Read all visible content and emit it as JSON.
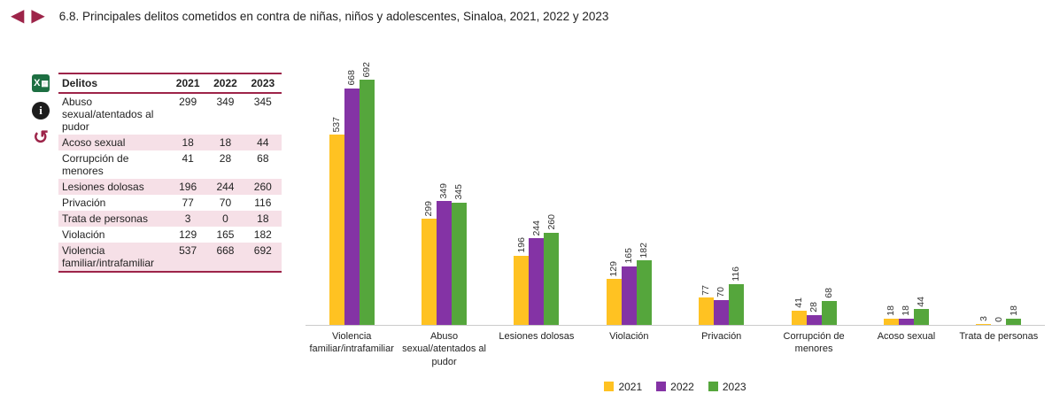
{
  "header": {
    "title": "6.8. Principales delitos cometidos en contra de niñas, niños y adolescentes, Sinaloa, 2021, 2022 y 2023",
    "prev_arrow": "◀",
    "next_arrow": "▶"
  },
  "toolbar": {
    "excel_icon": "excel-export-icon",
    "excel_glyph": "X",
    "excel_grid_glyph": "▦",
    "info_icon": "info-icon",
    "info_glyph": "i",
    "refresh_icon": "refresh-icon",
    "refresh_glyph": "↺"
  },
  "table": {
    "headers": [
      "Delitos",
      "2021",
      "2022",
      "2023"
    ],
    "rows": [
      {
        "label": "Abuso sexual/atentados al pudor",
        "values": [
          "299",
          "349",
          "345"
        ]
      },
      {
        "label": "Acoso sexual",
        "values": [
          "18",
          "18",
          "44"
        ]
      },
      {
        "label": "Corrupción de menores",
        "values": [
          "41",
          "28",
          "68"
        ]
      },
      {
        "label": "Lesiones dolosas",
        "values": [
          "196",
          "244",
          "260"
        ]
      },
      {
        "label": "Privación",
        "values": [
          "77",
          "70",
          "116"
        ]
      },
      {
        "label": "Trata de personas",
        "values": [
          "3",
          "0",
          "18"
        ]
      },
      {
        "label": "Violación",
        "values": [
          "129",
          "165",
          "182"
        ]
      },
      {
        "label": "Violencia familiar/intrafamiliar",
        "values": [
          "537",
          "668",
          "692"
        ]
      }
    ]
  },
  "chart_data": {
    "type": "bar",
    "title": "",
    "xlabel": "",
    "ylabel": "",
    "ylim": [
      0,
      700
    ],
    "grid": false,
    "legend_position": "bottom",
    "value_labels": "rotated-90-above-bars",
    "categories": [
      "Violencia familiar/intrafamiliar",
      "Abuso sexual/atentados al pudor",
      "Lesiones dolosas",
      "Violación",
      "Privación",
      "Corrupción de menores",
      "Acoso sexual",
      "Trata de personas"
    ],
    "series": [
      {
        "name": "2021",
        "color": "#FFC222",
        "values": [
          537,
          299,
          196,
          129,
          77,
          41,
          18,
          3
        ]
      },
      {
        "name": "2022",
        "color": "#8433A5",
        "values": [
          668,
          349,
          244,
          165,
          70,
          28,
          18,
          0
        ]
      },
      {
        "name": "2023",
        "color": "#55A63C",
        "values": [
          692,
          345,
          260,
          182,
          116,
          68,
          44,
          18
        ]
      }
    ]
  },
  "colors": {
    "accent_maroon": "#9D2449",
    "row_alt_pink": "#F6E0E7",
    "axis_line": "#CCCCCC"
  }
}
